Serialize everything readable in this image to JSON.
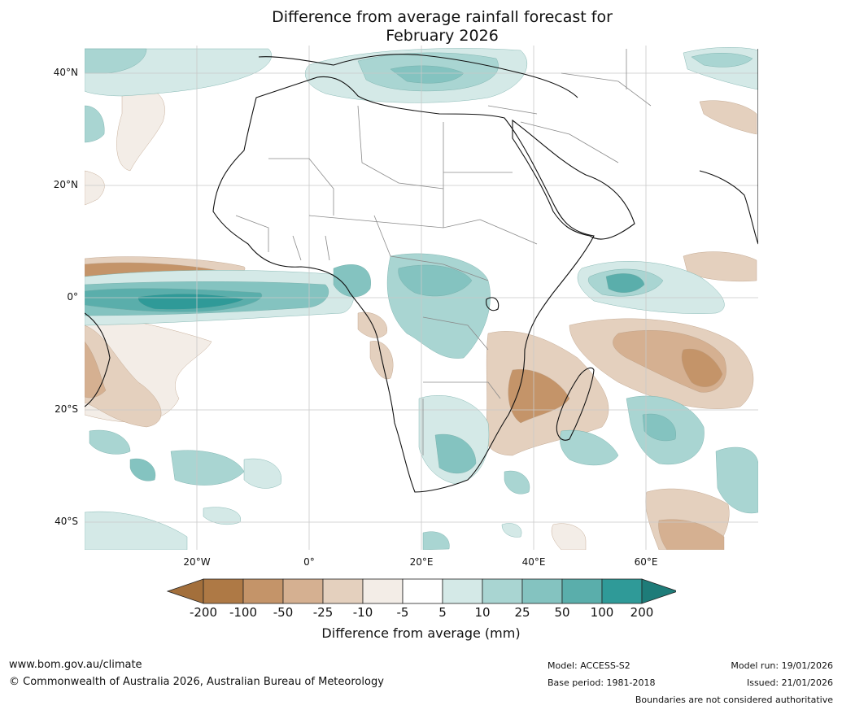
{
  "title_line1": "Difference from average rainfall forecast for",
  "title_line2": "February 2026",
  "lat_labels": [
    "40°N",
    "20°N",
    "0°",
    "20°S",
    "40°S"
  ],
  "lon_labels": [
    "20°W",
    "0°",
    "20°E",
    "40°E",
    "60°E"
  ],
  "legend": {
    "ticks": [
      "-200",
      "-100",
      "-50",
      "-25",
      "-10",
      "-5",
      "5",
      "10",
      "25",
      "50",
      "100",
      "200"
    ],
    "colors": [
      "#a36f3b",
      "#ae7945",
      "#c49469",
      "#d5b091",
      "#e4d0be",
      "#f3ede7",
      "#ffffff",
      "#d4e9e7",
      "#a9d5d2",
      "#84c3c0",
      "#5aaeab",
      "#2f9a98",
      "#1e7c79"
    ],
    "label": "Difference from average (mm)"
  },
  "footer": {
    "website": "www.bom.gov.au/climate",
    "copyright": "© Commonwealth of Australia 2026, Australian Bureau of Meteorology",
    "model": "Model: ACCESS-S2",
    "base_period": "Base period: 1981-2018",
    "model_run": "Model run: 19/01/2026",
    "issued": "Issued: 21/01/2026",
    "disclaimer": "Boundaries are not considered authoritative"
  }
}
